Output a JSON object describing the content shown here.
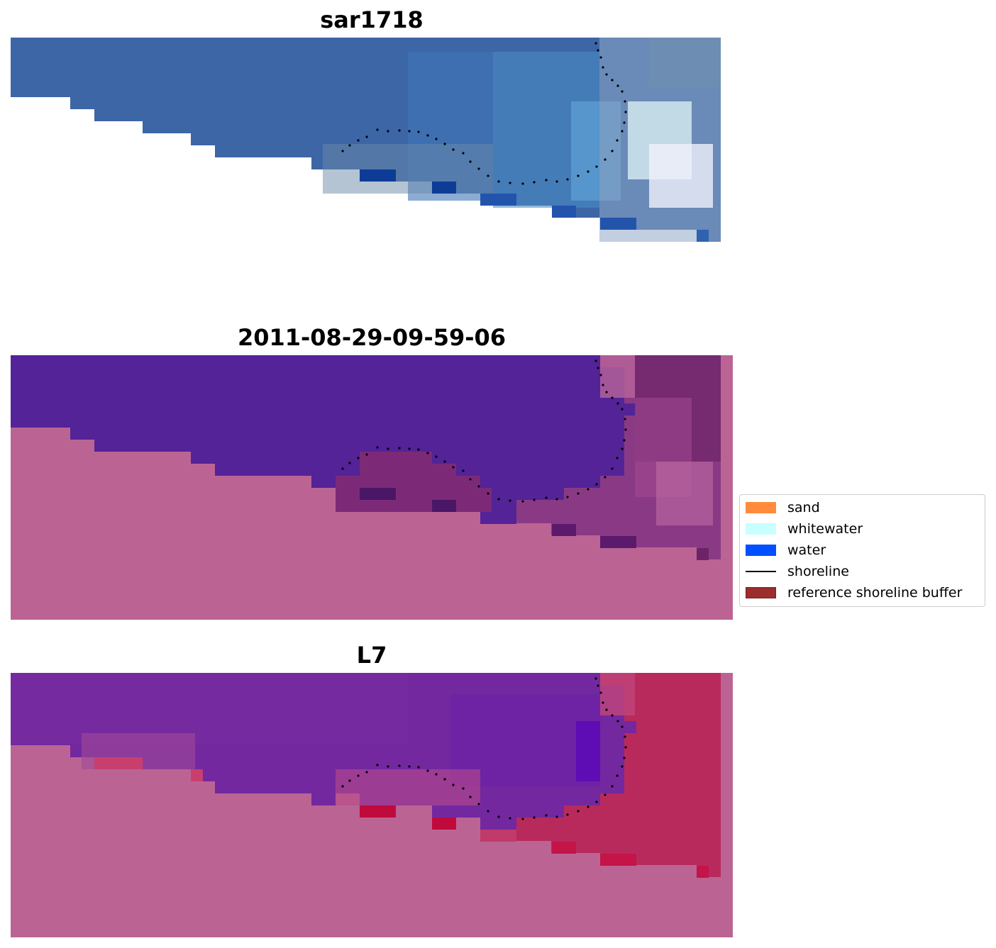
{
  "panels": [
    {
      "title": "sar1718"
    },
    {
      "title": "2011-08-29-09-59-06"
    },
    {
      "title": "L7"
    }
  ],
  "legend": {
    "items": [
      {
        "label": "sand",
        "color": "#ff8c3c",
        "kind": "patch"
      },
      {
        "label": "whitewater",
        "color": "#c8ffff",
        "kind": "patch"
      },
      {
        "label": "water",
        "color": "#0050ff",
        "kind": "patch"
      },
      {
        "label": "shoreline",
        "color": "#000000",
        "kind": "line"
      },
      {
        "label": "reference shoreline buffer",
        "color": "#9b2d2d",
        "kind": "patch",
        "edge": "#7a1e1e"
      }
    ]
  },
  "colors": {
    "land_background": "#bb6494",
    "classified_water": "#532397",
    "classified_buffer": "#7c2a78",
    "rgb_water": "#3a67a8",
    "ndwi_water": "#7328a0",
    "ndwi_shore": "#b82a5c"
  }
}
